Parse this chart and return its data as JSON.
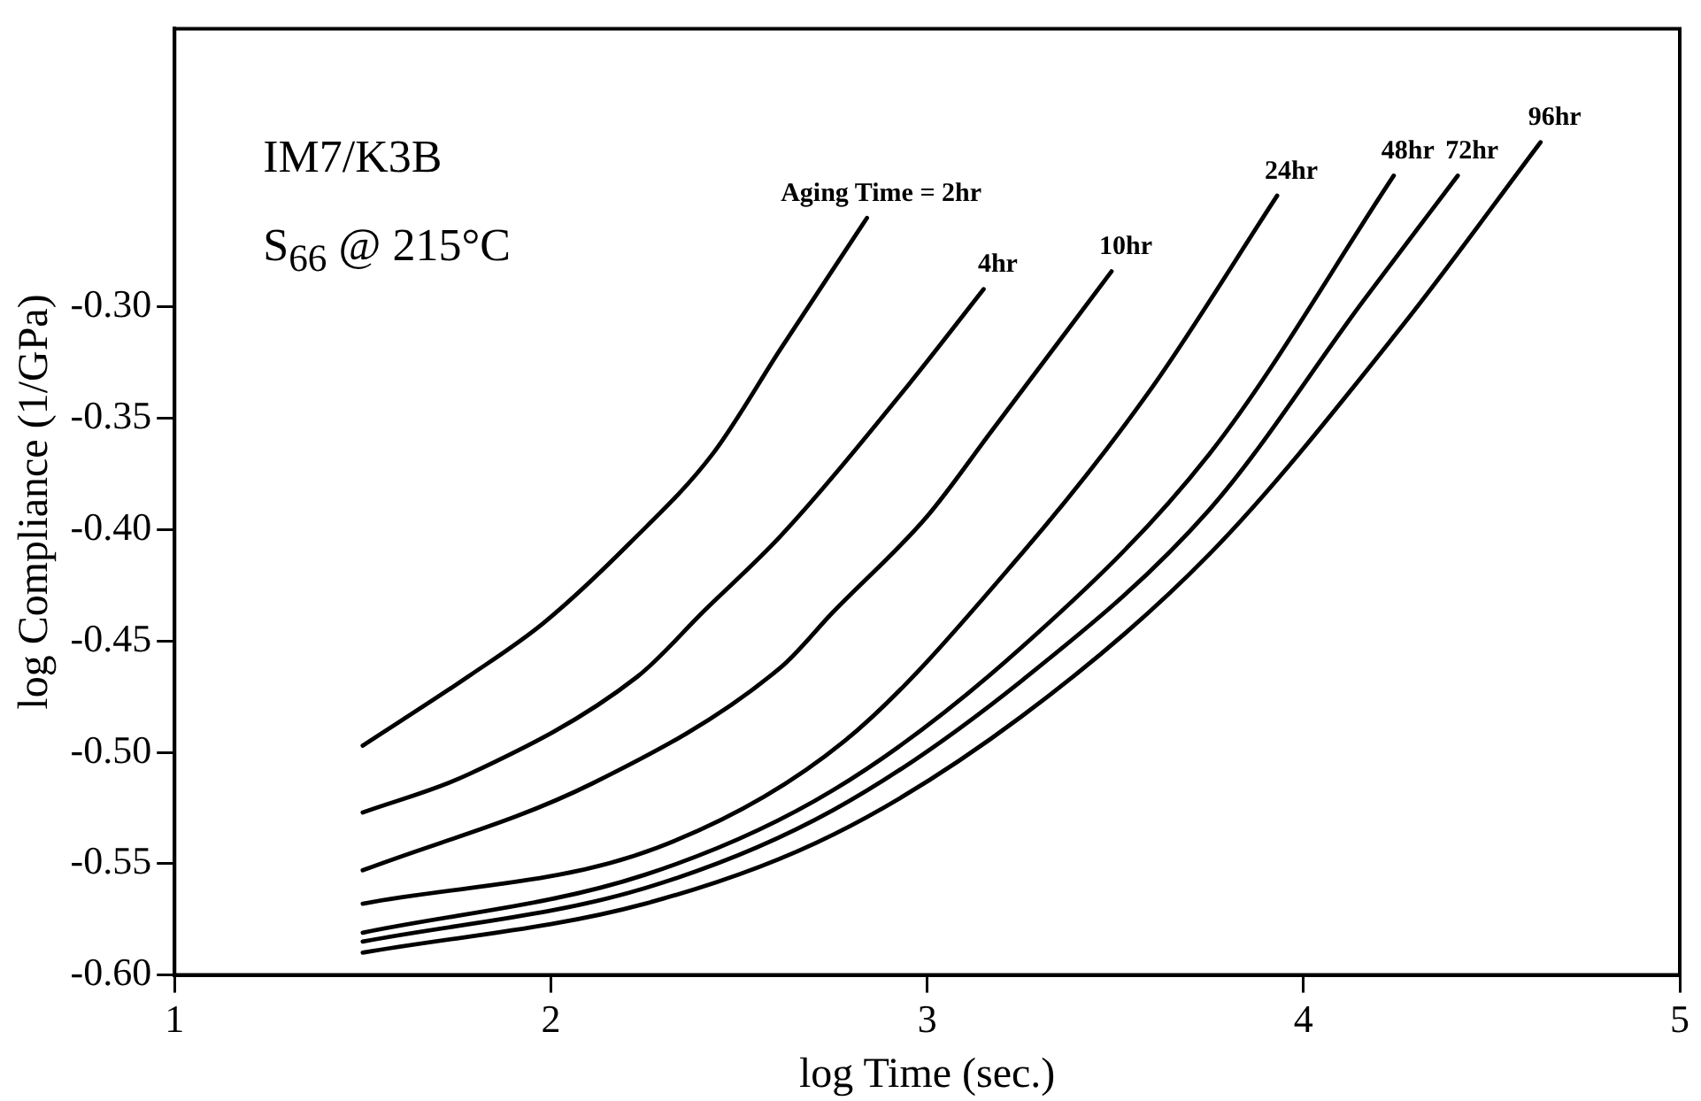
{
  "chart_data": {
    "type": "line",
    "xlabel": "log Time (sec.)",
    "ylabel": "log Compliance (1/GPa)",
    "annotations": [
      "IM7/K3B",
      "S$_{66}$  @ 215°C"
    ],
    "xlim": [
      1,
      5
    ],
    "xticks": [
      1,
      2,
      3,
      4,
      5
    ],
    "ylim": [
      -0.6,
      -0.175
    ],
    "yticks": [
      {
        "value": -0.6,
        "label": "-0.60"
      },
      {
        "value": -0.55,
        "label": "-0.55"
      },
      {
        "value": -0.5,
        "label": "-0.50"
      },
      {
        "value": -0.45,
        "label": "-0.45"
      },
      {
        "value": -0.4,
        "label": "-0.40"
      },
      {
        "value": -0.35,
        "label": "-0.35"
      },
      {
        "value": -0.3,
        "label": "-0.30"
      }
    ],
    "marker": "none",
    "line_style": "solid",
    "legend": false,
    "series": [
      {
        "name": "Aging Time = 2hr",
        "color": "#000000",
        "x": [
          1.5,
          1.78,
          1.98,
          2.21,
          2.43,
          2.61,
          2.84
        ],
        "values": [
          -0.497,
          -0.466,
          -0.442,
          -0.406,
          -0.366,
          -0.319,
          -0.26
        ]
      },
      {
        "name": "4hr",
        "color": "#000000",
        "x": [
          1.5,
          1.78,
          2.23,
          2.41,
          2.61,
          2.95,
          3.15
        ],
        "values": [
          -0.527,
          -0.51,
          -0.466,
          -0.436,
          -0.403,
          -0.335,
          -0.292
        ]
      },
      {
        "name": "10hr",
        "color": "#000000",
        "x": [
          1.5,
          2.11,
          2.61,
          2.75,
          3.0,
          3.17,
          3.49
        ],
        "values": [
          -0.553,
          -0.514,
          -0.462,
          -0.437,
          -0.394,
          -0.356,
          -0.284
        ]
      },
      {
        "name": "24hr",
        "color": "#000000",
        "x": [
          1.5,
          2.28,
          2.78,
          3.25,
          3.59,
          3.93
        ],
        "values": [
          -0.568,
          -0.543,
          -0.495,
          -0.411,
          -0.338,
          -0.25
        ]
      },
      {
        "name": "48hr",
        "color": "#000000",
        "x": [
          1.5,
          2.25,
          2.75,
          3.25,
          3.75,
          4.24
        ],
        "values": [
          -0.581,
          -0.555,
          -0.517,
          -0.453,
          -0.366,
          -0.241
        ]
      },
      {
        "name": "72hr",
        "color": "#000000",
        "x": [
          1.5,
          2.25,
          2.75,
          3.25,
          3.75,
          4.16,
          4.41
        ],
        "values": [
          -0.585,
          -0.561,
          -0.526,
          -0.468,
          -0.391,
          -0.297,
          -0.241
        ]
      },
      {
        "name": "96hr",
        "color": "#000000",
        "x": [
          1.5,
          2.25,
          2.75,
          3.25,
          3.75,
          4.26,
          4.63
        ],
        "values": [
          -0.59,
          -0.568,
          -0.537,
          -0.484,
          -0.411,
          -0.309,
          -0.226
        ]
      }
    ]
  }
}
